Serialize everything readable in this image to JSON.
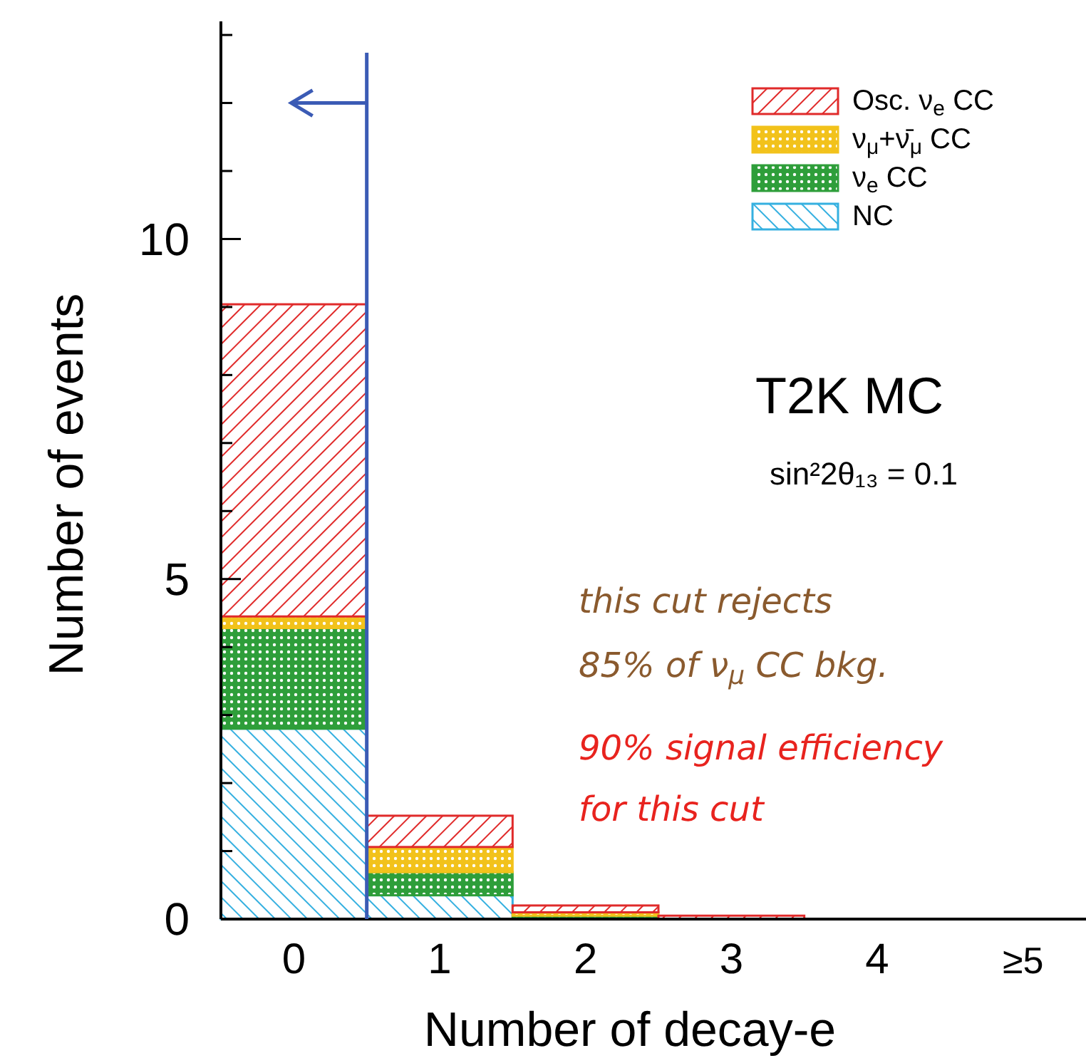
{
  "chart_data": {
    "type": "bar",
    "stacked": true,
    "xlabel": "Number of decay-e",
    "ylabel": "Number of events",
    "x": [
      0,
      1,
      2,
      3,
      4,
      5
    ],
    "series": [
      {
        "name": "NC",
        "color": "#35b0e0",
        "values": [
          2.8,
          0.35,
          null,
          null,
          0,
          0
        ]
      },
      {
        "name": "ν$_{e}$ CC",
        "color": "#2e9e3a",
        "values": [
          1.48,
          0.34,
          0.05,
          null,
          0,
          0
        ]
      },
      {
        "name": "ν$_{μ}$+ν̄$_{μ}$ CC",
        "color": "#f2c21b",
        "values": [
          0.17,
          0.37,
          0.05,
          null,
          0,
          0
        ]
      },
      {
        "name": "Osc. ν$_{e}$ CC",
        "color": "#e02a2a",
        "values": [
          4.59,
          0.46,
          0.1,
          0.05,
          0,
          0
        ]
      }
    ],
    "xlim": [
      -0.5,
      5.5
    ],
    "ylim": [
      0,
      13.2
    ],
    "xticks": [
      0,
      1,
      2,
      3,
      4,
      {
        "value": 5,
        "label": "≥5"
      }
    ],
    "yticks": [
      0,
      {
        "value": 1,
        "label": null
      },
      {
        "value": 2,
        "label": null
      },
      {
        "value": 3,
        "label": null
      },
      {
        "value": 4,
        "label": null
      },
      5,
      {
        "value": 6,
        "label": null
      },
      {
        "value": 7,
        "label": null
      },
      {
        "value": 8,
        "label": null
      },
      {
        "value": 9,
        "label": null
      },
      10,
      {
        "value": 11,
        "label": null
      },
      {
        "value": 12,
        "label": null
      },
      {
        "value": 13,
        "label": null
      }
    ],
    "ref_lines": [
      {
        "axis": "x",
        "value": 0.5,
        "color": "#3b5bb5"
      }
    ],
    "legend": "top right",
    "annotations": [
      "T2K MC",
      "sin²2θ₁₃ = 0.1",
      "this cut rejects",
      "85% of ν$_{μ}$ CC bkg.",
      "90% signal efficiency",
      "for this cut"
    ]
  }
}
